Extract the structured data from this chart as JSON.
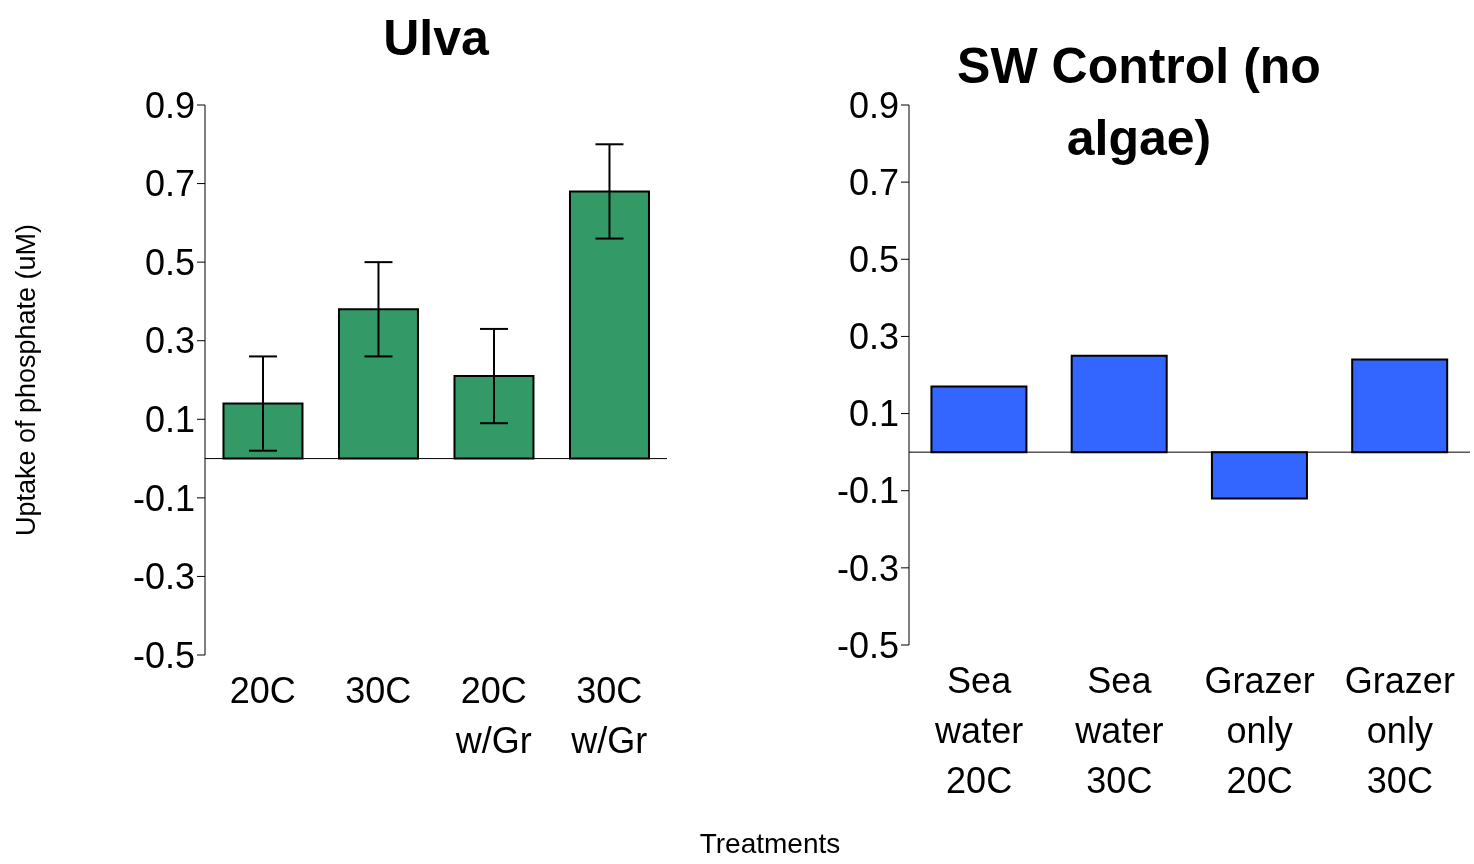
{
  "chart_data": [
    {
      "type": "bar",
      "title": "Ulva",
      "ylabel": "Uptake of phosphate (uM)",
      "xlabel": "Treatments",
      "categories": [
        "20C",
        "30C",
        "20C w/Gr",
        "30C w/Gr"
      ],
      "values": [
        0.14,
        0.38,
        0.21,
        0.68
      ],
      "errors": [
        0.12,
        0.12,
        0.12,
        0.12
      ],
      "color": "#339966",
      "ylim": [
        -0.5,
        0.9
      ],
      "yticks": [
        -0.5,
        -0.3,
        -0.1,
        0.1,
        0.3,
        0.5,
        0.7,
        0.9
      ],
      "grid": false
    },
    {
      "type": "bar",
      "title": "SW Control (no algae)",
      "categories": [
        "Sea water 20C",
        "Sea water 30C",
        "Grazer only 20C",
        "Grazer only 30C"
      ],
      "values": [
        0.17,
        0.25,
        -0.12,
        0.24
      ],
      "color": "#3366ff",
      "ylim": [
        -0.5,
        0.9
      ],
      "yticks": [
        -0.5,
        -0.3,
        -0.1,
        0.1,
        0.3,
        0.5,
        0.7,
        0.9
      ],
      "grid": false
    }
  ]
}
